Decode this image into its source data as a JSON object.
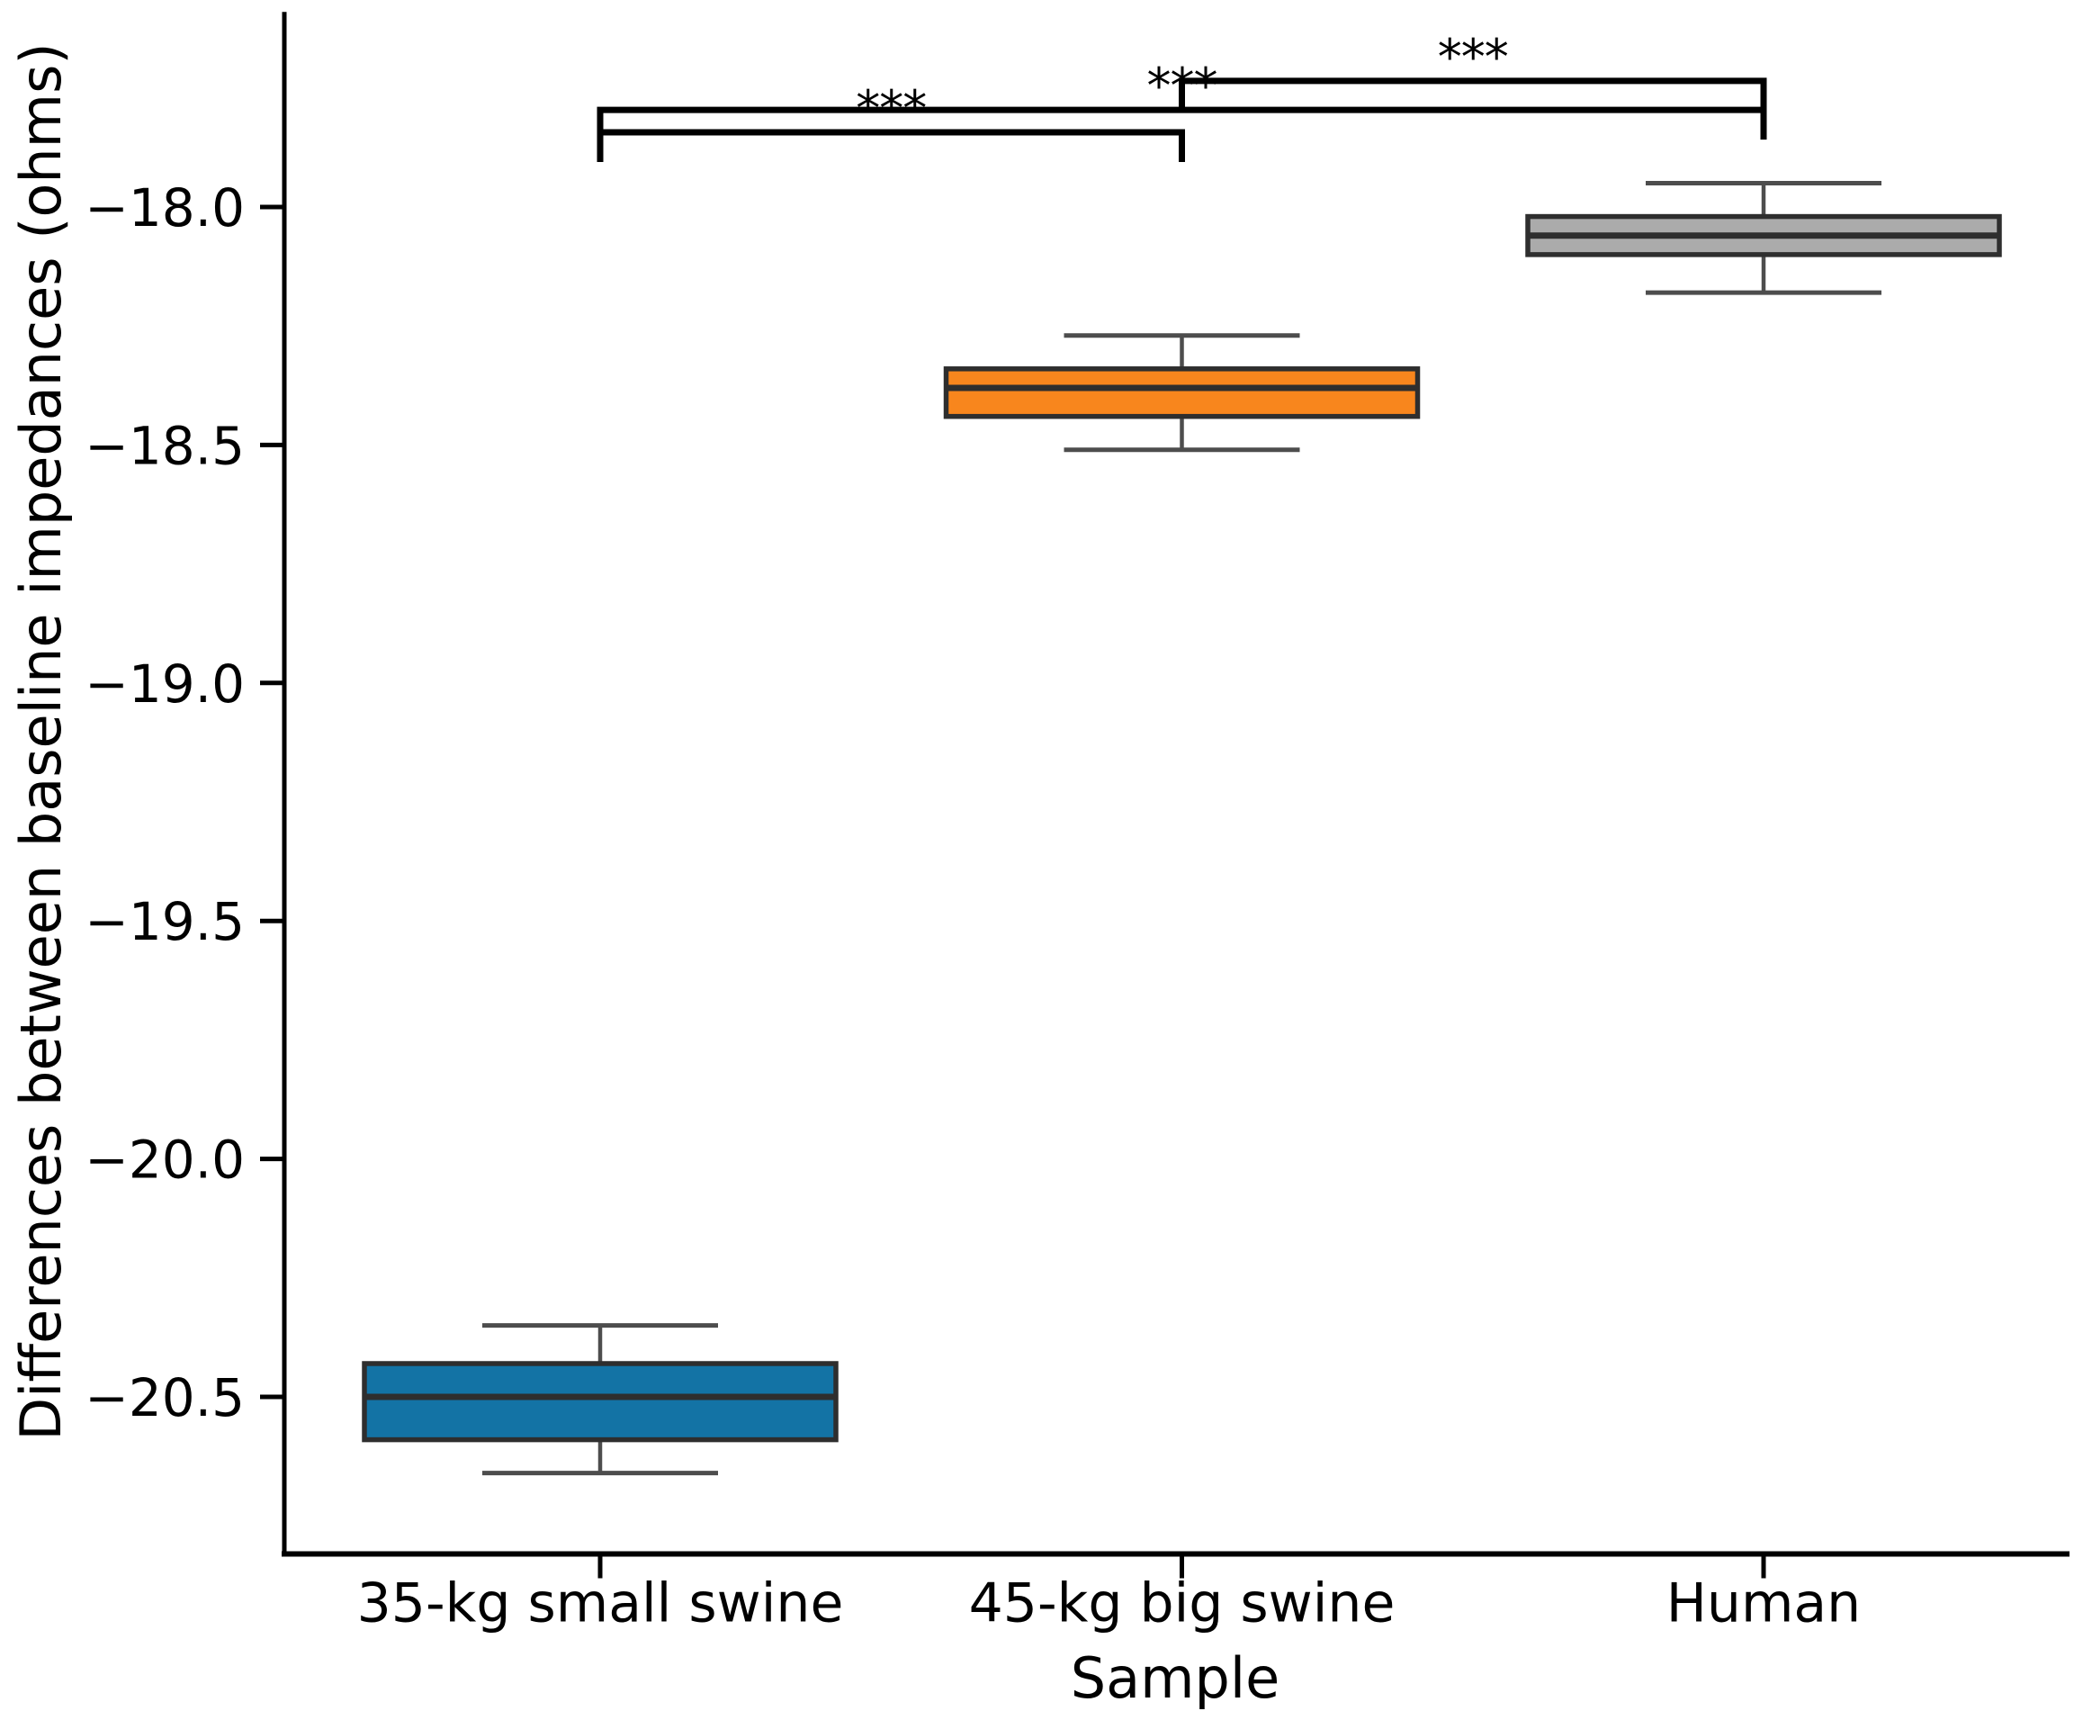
{
  "chart_data": {
    "type": "box",
    "title": "",
    "xlabel": "Sample",
    "ylabel": "Differences between baseline impedances (ohms)",
    "categories": [
      "35-kg small swine",
      "45-kg big swine",
      "Human"
    ],
    "series": [
      {
        "name": "35-kg small swine",
        "color": "#1373a5",
        "whisker_low": -20.66,
        "q1": -20.59,
        "median": -20.5,
        "q3": -20.43,
        "whisker_high": -20.35
      },
      {
        "name": "45-kg big swine",
        "color": "#f8861d",
        "whisker_low": -18.51,
        "q1": -18.44,
        "median": -18.38,
        "q3": -18.34,
        "whisker_high": -18.27
      },
      {
        "name": "Human",
        "color": "#ababab",
        "whisker_low": -18.18,
        "q1": -18.1,
        "median": -18.06,
        "q3": -18.02,
        "whisker_high": -17.95
      }
    ],
    "yticks": {
      "values": [
        -18.0,
        -18.5,
        -19.0,
        -19.5,
        -20.0,
        -20.5
      ],
      "labels": [
        "−18.0",
        "−18.5",
        "−19.0",
        "−19.5",
        "−20.0",
        "−20.5"
      ]
    },
    "ylim": [
      -20.83,
      -17.59
    ],
    "grid": false,
    "legend": null,
    "annotations": [
      {
        "pair": [
          0,
          1
        ],
        "label": "***",
        "y": -17.843
      },
      {
        "pair": [
          0,
          2
        ],
        "label": "***",
        "y": -17.796
      },
      {
        "pair": [
          1,
          2
        ],
        "label": "***",
        "y": -17.735
      }
    ],
    "style_colors": {
      "box_edge": "#2e2e2e",
      "whisker": "#4d4d4d",
      "spine": "#000000",
      "bracket": "#000000",
      "text": "#000000"
    }
  }
}
